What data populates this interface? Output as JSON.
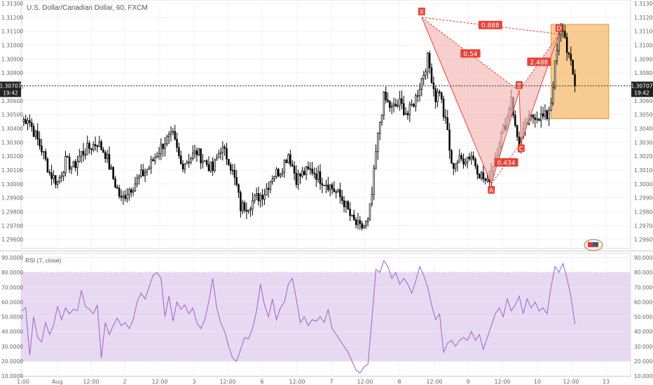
{
  "chart_data": [
    {
      "type": "candlestick",
      "title": "U.S. Dollar/Canadian Dollar, 60, FXCM",
      "ylim": [
        1.2955,
        1.313
      ],
      "y_ticks": [
        "1.31300",
        "1.31200",
        "1.31100",
        "1.31000",
        "1.30900",
        "1.30800",
        "1.30700",
        "1.30600",
        "1.30500",
        "1.30400",
        "1.30300",
        "1.30200",
        "1.30100",
        "1.30000",
        "1.29900",
        "1.29800",
        "1.29700",
        "1.29600"
      ],
      "x_ticks": [
        "1:00",
        "Aug",
        "12:00",
        "2",
        "12:00",
        "3",
        "12:00",
        "6",
        "12:00",
        "7",
        "12:00",
        "8",
        "12:00",
        "9",
        "12:00",
        "10",
        "12:00",
        "13"
      ],
      "last_price": "1.30707",
      "last_price_value": 1.30707,
      "time_label": "19:42",
      "anchors": [
        {
          "i": 0,
          "p": 1.3045
        },
        {
          "i": 3,
          "p": 1.3048
        },
        {
          "i": 6,
          "p": 1.3038
        },
        {
          "i": 10,
          "p": 1.3025
        },
        {
          "i": 14,
          "p": 1.3008
        },
        {
          "i": 18,
          "p": 1.3001
        },
        {
          "i": 22,
          "p": 1.3016
        },
        {
          "i": 26,
          "p": 1.3012
        },
        {
          "i": 30,
          "p": 1.3022
        },
        {
          "i": 34,
          "p": 1.3026
        },
        {
          "i": 38,
          "p": 1.303
        },
        {
          "i": 42,
          "p": 1.3022
        },
        {
          "i": 46,
          "p": 1.3004
        },
        {
          "i": 50,
          "p": 1.2988
        },
        {
          "i": 53,
          "p": 1.2995
        },
        {
          "i": 56,
          "p": 1.2999
        },
        {
          "i": 60,
          "p": 1.3006
        },
        {
          "i": 64,
          "p": 1.3012
        },
        {
          "i": 68,
          "p": 1.3022
        },
        {
          "i": 72,
          "p": 1.3031
        },
        {
          "i": 76,
          "p": 1.3034
        },
        {
          "i": 80,
          "p": 1.3014
        },
        {
          "i": 84,
          "p": 1.3018
        },
        {
          "i": 88,
          "p": 1.3023
        },
        {
          "i": 92,
          "p": 1.3016
        },
        {
          "i": 96,
          "p": 1.301
        },
        {
          "i": 100,
          "p": 1.3026
        },
        {
          "i": 104,
          "p": 1.3018
        },
        {
          "i": 108,
          "p": 1.2998
        },
        {
          "i": 110,
          "p": 1.2983
        },
        {
          "i": 114,
          "p": 1.2985
        },
        {
          "i": 118,
          "p": 1.299
        },
        {
          "i": 122,
          "p": 1.2994
        },
        {
          "i": 126,
          "p": 1.3006
        },
        {
          "i": 130,
          "p": 1.301
        },
        {
          "i": 134,
          "p": 1.3022
        },
        {
          "i": 138,
          "p": 1.3004
        },
        {
          "i": 142,
          "p": 1.3008
        },
        {
          "i": 146,
          "p": 1.301
        },
        {
          "i": 150,
          "p": 1.3004
        },
        {
          "i": 154,
          "p": 1.3
        },
        {
          "i": 158,
          "p": 1.2994
        },
        {
          "i": 162,
          "p": 1.2987
        },
        {
          "i": 166,
          "p": 1.2974
        },
        {
          "i": 170,
          "p": 1.2968
        },
        {
          "i": 174,
          "p": 1.2972
        },
        {
          "i": 176,
          "p": 1.2992
        },
        {
          "i": 178,
          "p": 1.3022
        },
        {
          "i": 180,
          "p": 1.3045
        },
        {
          "i": 182,
          "p": 1.3062
        },
        {
          "i": 186,
          "p": 1.3054
        },
        {
          "i": 190,
          "p": 1.3058
        },
        {
          "i": 194,
          "p": 1.305
        },
        {
          "i": 198,
          "p": 1.3062
        },
        {
          "i": 202,
          "p": 1.308
        },
        {
          "i": 204,
          "p": 1.309
        },
        {
          "i": 206,
          "p": 1.3077
        },
        {
          "i": 208,
          "p": 1.3062
        },
        {
          "i": 210,
          "p": 1.3068
        },
        {
          "i": 212,
          "p": 1.305
        },
        {
          "i": 214,
          "p": 1.3038
        },
        {
          "i": 216,
          "p": 1.3012
        },
        {
          "i": 218,
          "p": 1.3016
        },
        {
          "i": 222,
          "p": 1.3018
        },
        {
          "i": 226,
          "p": 1.3021
        },
        {
          "i": 230,
          "p": 1.3008
        },
        {
          "i": 234,
          "p": 1.3
        },
        {
          "i": 236,
          "p": 1.301
        },
        {
          "i": 240,
          "p": 1.303
        },
        {
          "i": 244,
          "p": 1.3048
        },
        {
          "i": 246,
          "p": 1.3064
        },
        {
          "i": 248,
          "p": 1.304
        },
        {
          "i": 250,
          "p": 1.3028
        },
        {
          "i": 254,
          "p": 1.3044
        },
        {
          "i": 258,
          "p": 1.305
        },
        {
          "i": 262,
          "p": 1.3048
        },
        {
          "i": 264,
          "p": 1.3049
        },
        {
          "i": 266,
          "p": 1.306
        },
        {
          "i": 268,
          "p": 1.3085
        },
        {
          "i": 270,
          "p": 1.3105
        },
        {
          "i": 272,
          "p": 1.3112
        },
        {
          "i": 274,
          "p": 1.3098
        },
        {
          "i": 276,
          "p": 1.3085
        },
        {
          "i": 278,
          "p": 1.3071
        }
      ],
      "pattern": {
        "points": [
          {
            "label": "X",
            "i": 201,
            "p": 1.312
          },
          {
            "label": "A",
            "i": 236,
            "p": 1.3
          },
          {
            "label": "B",
            "i": 250,
            "p": 1.3067
          },
          {
            "label": "C",
            "i": 251,
            "p": 1.303
          },
          {
            "label": "D",
            "i": 270,
            "p": 1.3108
          }
        ],
        "ratios": [
          "0.888",
          "0.54",
          "2.488",
          "0.434"
        ],
        "color": "#e5443a",
        "fill": "#f2b5b0"
      },
      "target_zone": {
        "i_start": 266,
        "i_end": 295,
        "p_low": 1.3047,
        "p_high": 1.3115,
        "color": "#f6c27f"
      }
    },
    {
      "type": "line",
      "title": "RSI (7, close)",
      "ylim": [
        10,
        90
      ],
      "y_ticks": [
        "90.0000",
        "80.0000",
        "70.0000",
        "60.0000",
        "50.0000",
        "40.0000",
        "30.0000",
        "20.0000",
        "10.0000"
      ],
      "band": [
        20,
        80
      ],
      "series_color": "#a56bc9",
      "band_color": "#e8d9f3",
      "anchors": [
        {
          "i": 0,
          "v": 54
        },
        {
          "i": 2,
          "v": 56
        },
        {
          "i": 4,
          "v": 24
        },
        {
          "i": 6,
          "v": 50
        },
        {
          "i": 8,
          "v": 36
        },
        {
          "i": 10,
          "v": 33
        },
        {
          "i": 12,
          "v": 46
        },
        {
          "i": 14,
          "v": 38
        },
        {
          "i": 16,
          "v": 44
        },
        {
          "i": 18,
          "v": 57
        },
        {
          "i": 20,
          "v": 48
        },
        {
          "i": 22,
          "v": 56
        },
        {
          "i": 24,
          "v": 52
        },
        {
          "i": 26,
          "v": 55
        },
        {
          "i": 28,
          "v": 54
        },
        {
          "i": 30,
          "v": 68
        },
        {
          "i": 32,
          "v": 57
        },
        {
          "i": 34,
          "v": 55
        },
        {
          "i": 36,
          "v": 52
        },
        {
          "i": 38,
          "v": 58
        },
        {
          "i": 40,
          "v": 22
        },
        {
          "i": 42,
          "v": 46
        },
        {
          "i": 44,
          "v": 38
        },
        {
          "i": 46,
          "v": 44
        },
        {
          "i": 48,
          "v": 49
        },
        {
          "i": 50,
          "v": 44
        },
        {
          "i": 52,
          "v": 46
        },
        {
          "i": 54,
          "v": 42
        },
        {
          "i": 56,
          "v": 48
        },
        {
          "i": 58,
          "v": 60
        },
        {
          "i": 60,
          "v": 66
        },
        {
          "i": 62,
          "v": 62
        },
        {
          "i": 64,
          "v": 70
        },
        {
          "i": 66,
          "v": 78
        },
        {
          "i": 68,
          "v": 80
        },
        {
          "i": 70,
          "v": 76
        },
        {
          "i": 72,
          "v": 50
        },
        {
          "i": 74,
          "v": 64
        },
        {
          "i": 76,
          "v": 47
        },
        {
          "i": 78,
          "v": 60
        },
        {
          "i": 80,
          "v": 55
        },
        {
          "i": 82,
          "v": 58
        },
        {
          "i": 84,
          "v": 52
        },
        {
          "i": 86,
          "v": 56
        },
        {
          "i": 88,
          "v": 46
        },
        {
          "i": 90,
          "v": 42
        },
        {
          "i": 92,
          "v": 48
        },
        {
          "i": 94,
          "v": 60
        },
        {
          "i": 96,
          "v": 76
        },
        {
          "i": 98,
          "v": 56
        },
        {
          "i": 100,
          "v": 46
        },
        {
          "i": 102,
          "v": 40
        },
        {
          "i": 104,
          "v": 30
        },
        {
          "i": 106,
          "v": 22
        },
        {
          "i": 108,
          "v": 20
        },
        {
          "i": 110,
          "v": 28
        },
        {
          "i": 112,
          "v": 36
        },
        {
          "i": 114,
          "v": 35
        },
        {
          "i": 116,
          "v": 42
        },
        {
          "i": 118,
          "v": 54
        },
        {
          "i": 120,
          "v": 72
        },
        {
          "i": 122,
          "v": 58
        },
        {
          "i": 124,
          "v": 50
        },
        {
          "i": 126,
          "v": 62
        },
        {
          "i": 128,
          "v": 48
        },
        {
          "i": 130,
          "v": 56
        },
        {
          "i": 132,
          "v": 60
        },
        {
          "i": 134,
          "v": 72
        },
        {
          "i": 136,
          "v": 76
        },
        {
          "i": 138,
          "v": 62
        },
        {
          "i": 140,
          "v": 46
        },
        {
          "i": 142,
          "v": 50
        },
        {
          "i": 144,
          "v": 44
        },
        {
          "i": 146,
          "v": 48
        },
        {
          "i": 148,
          "v": 47
        },
        {
          "i": 150,
          "v": 50
        },
        {
          "i": 152,
          "v": 46
        },
        {
          "i": 154,
          "v": 55
        },
        {
          "i": 156,
          "v": 42
        },
        {
          "i": 158,
          "v": 38
        },
        {
          "i": 160,
          "v": 34
        },
        {
          "i": 162,
          "v": 30
        },
        {
          "i": 164,
          "v": 26
        },
        {
          "i": 166,
          "v": 20
        },
        {
          "i": 168,
          "v": 14
        },
        {
          "i": 170,
          "v": 12
        },
        {
          "i": 172,
          "v": 16
        },
        {
          "i": 174,
          "v": 18
        },
        {
          "i": 176,
          "v": 48
        },
        {
          "i": 178,
          "v": 82
        },
        {
          "i": 180,
          "v": 80
        },
        {
          "i": 182,
          "v": 88
        },
        {
          "i": 184,
          "v": 84
        },
        {
          "i": 186,
          "v": 76
        },
        {
          "i": 188,
          "v": 80
        },
        {
          "i": 190,
          "v": 72
        },
        {
          "i": 192,
          "v": 76
        },
        {
          "i": 194,
          "v": 72
        },
        {
          "i": 196,
          "v": 66
        },
        {
          "i": 198,
          "v": 74
        },
        {
          "i": 200,
          "v": 84
        },
        {
          "i": 202,
          "v": 78
        },
        {
          "i": 204,
          "v": 70
        },
        {
          "i": 206,
          "v": 58
        },
        {
          "i": 208,
          "v": 48
        },
        {
          "i": 210,
          "v": 52
        },
        {
          "i": 212,
          "v": 26
        },
        {
          "i": 214,
          "v": 32
        },
        {
          "i": 216,
          "v": 34
        },
        {
          "i": 218,
          "v": 30
        },
        {
          "i": 220,
          "v": 34
        },
        {
          "i": 222,
          "v": 36
        },
        {
          "i": 224,
          "v": 34
        },
        {
          "i": 226,
          "v": 40
        },
        {
          "i": 228,
          "v": 34
        },
        {
          "i": 230,
          "v": 38
        },
        {
          "i": 232,
          "v": 28
        },
        {
          "i": 234,
          "v": 36
        },
        {
          "i": 236,
          "v": 44
        },
        {
          "i": 238,
          "v": 52
        },
        {
          "i": 240,
          "v": 56
        },
        {
          "i": 242,
          "v": 50
        },
        {
          "i": 244,
          "v": 62
        },
        {
          "i": 246,
          "v": 54
        },
        {
          "i": 248,
          "v": 58
        },
        {
          "i": 250,
          "v": 64
        },
        {
          "i": 252,
          "v": 52
        },
        {
          "i": 254,
          "v": 62
        },
        {
          "i": 256,
          "v": 56
        },
        {
          "i": 258,
          "v": 60
        },
        {
          "i": 260,
          "v": 54
        },
        {
          "i": 262,
          "v": 56
        },
        {
          "i": 264,
          "v": 52
        },
        {
          "i": 266,
          "v": 70
        },
        {
          "i": 268,
          "v": 84
        },
        {
          "i": 270,
          "v": 80
        },
        {
          "i": 272,
          "v": 86
        },
        {
          "i": 274,
          "v": 76
        },
        {
          "i": 276,
          "v": 64
        },
        {
          "i": 278,
          "v": 45
        }
      ]
    }
  ]
}
